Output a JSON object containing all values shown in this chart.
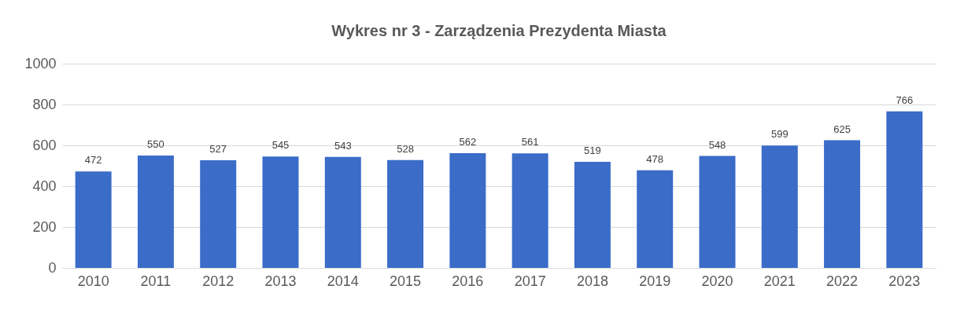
{
  "chart_data": {
    "type": "bar",
    "title": "Wykres nr 3 - Zarządzenia Prezydenta Miasta",
    "categories": [
      "2010",
      "2011",
      "2012",
      "2013",
      "2014",
      "2015",
      "2016",
      "2017",
      "2018",
      "2019",
      "2020",
      "2021",
      "2022",
      "2023"
    ],
    "values": [
      472,
      550,
      527,
      545,
      543,
      528,
      562,
      561,
      519,
      478,
      548,
      599,
      625,
      766
    ],
    "color": "#3a6cc8",
    "ylim": [
      0,
      1000
    ],
    "yticks": [
      0,
      200,
      400,
      600,
      800,
      1000
    ],
    "grid": "y",
    "data_labels": true
  }
}
